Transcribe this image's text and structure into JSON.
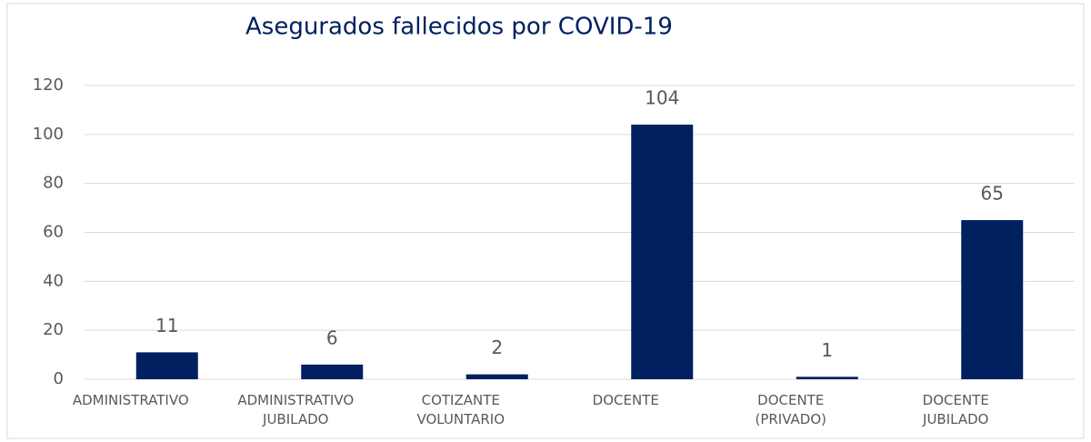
{
  "chart_data": {
    "type": "bar",
    "title": "Asegurados fallecidos por COVID-19",
    "categories": [
      "ADMINISTRATIVO",
      "ADMINISTRATIVO JUBILADO",
      "COTIZANTE VOLUNTARIO",
      "DOCENTE",
      "DOCENTE (PRIVADO)",
      "DOCENTE JUBILADO"
    ],
    "values": [
      11,
      6,
      2,
      104,
      1,
      65
    ],
    "color": "#002060",
    "ylim": [
      0,
      120
    ],
    "yticks": [
      0,
      20,
      40,
      60,
      80,
      100,
      120
    ],
    "grid": true
  }
}
